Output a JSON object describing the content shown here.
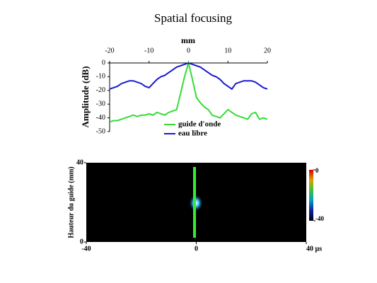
{
  "chart_data": [
    {
      "type": "line",
      "title": "Spatial focusing",
      "title_color": "#e02020",
      "xlabel": "mm",
      "ylabel": "Amplitude (dB)",
      "xlim": [
        -20,
        20
      ],
      "ylim": [
        -50,
        0
      ],
      "xticks": [
        -20,
        -10,
        0,
        10,
        20
      ],
      "yticks": [
        0,
        -10,
        -20,
        -30,
        -40,
        -50
      ],
      "x": [
        -20,
        -19,
        -18,
        -17,
        -16,
        -15,
        -14,
        -13,
        -12,
        -11,
        -10,
        -9,
        -8,
        -7,
        -6,
        -5,
        -4,
        -3,
        -2,
        -1,
        0,
        1,
        2,
        3,
        4,
        5,
        6,
        7,
        8,
        9,
        10,
        11,
        12,
        13,
        14,
        15,
        16,
        17,
        18,
        19,
        20
      ],
      "series": [
        {
          "name": "guide d'onde",
          "color": "#33dd33",
          "values": [
            -43,
            -42,
            -42,
            -41,
            -40,
            -39,
            -38,
            -39,
            -38,
            -38,
            -37,
            -38,
            -36,
            -37,
            -38,
            -36,
            -35,
            -34,
            -22,
            -10,
            0,
            -12,
            -25,
            -29,
            -32,
            -34,
            -38,
            -39,
            -40,
            -37,
            -34,
            -36,
            -38,
            -39,
            -40,
            -41,
            -37,
            -36,
            -41,
            -40,
            -41
          ]
        },
        {
          "name": "eau libre",
          "color": "#1a1acc",
          "values": [
            -19,
            -18,
            -17,
            -15,
            -14,
            -13,
            -13,
            -14,
            -15,
            -17,
            -18,
            -15,
            -12,
            -10,
            -9,
            -7,
            -5,
            -3,
            -2,
            -1,
            0,
            -1,
            -2,
            -3,
            -5,
            -7,
            -9,
            -10,
            -12,
            -15,
            -17,
            -19,
            -15,
            -14,
            -13,
            -13,
            -13,
            -14,
            -16,
            -18,
            -19
          ]
        }
      ]
    },
    {
      "type": "image",
      "ylabel": "Hauteur du guide (mm)",
      "xlim": [
        -40,
        40
      ],
      "ylim": [
        0,
        40
      ],
      "xticks": [
        -40,
        0,
        {
          "value": 40,
          "label": "40 µs"
        }
      ],
      "yticks": [
        0,
        40
      ],
      "colorbar": {
        "lim": [
          -40,
          0
        ],
        "ticks": [
          0,
          -40
        ]
      }
    }
  ]
}
